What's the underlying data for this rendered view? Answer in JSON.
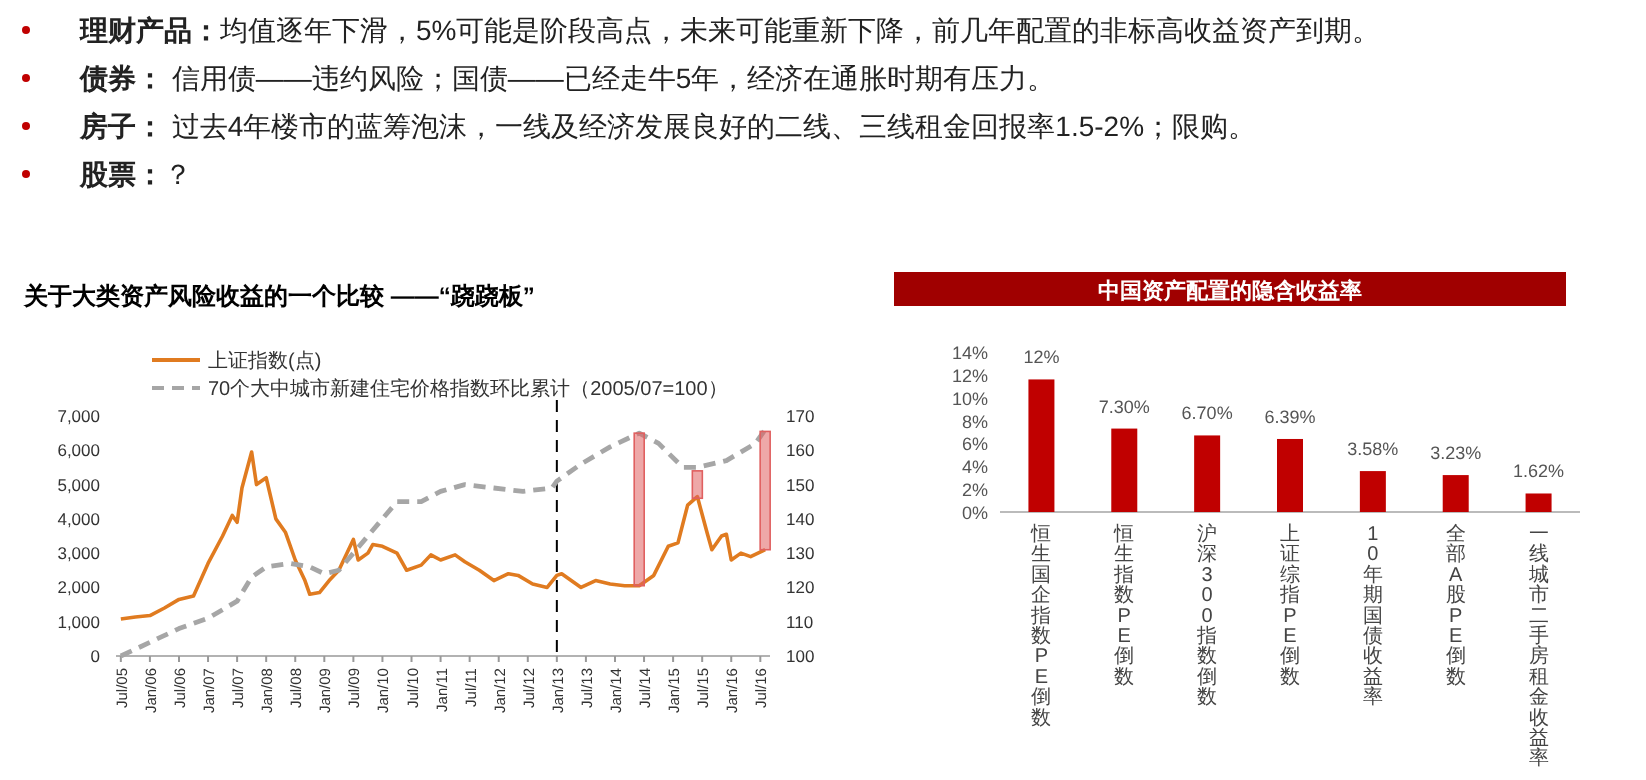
{
  "chart_data": [
    {
      "type": "other",
      "annotations": [
        "理财产品：均值逐年下滑，5%可能是阶段高点，未来可能重新下降，前几年配置的非标高收益资产到期。",
        "债券： 信用债——违约风险；国债——已经走牛5年，经济在通胀时期有压力。",
        "房子： 过去4年楼市的蓝筹泡沫，一线及经济发展良好的二线、三线租金回报率1.5-2%；限购。",
        "股票：？"
      ]
    },
    {
      "type": "line",
      "title": "关于大类资产风险收益的一个比较 ——“跷跷板”",
      "legend": "top left",
      "marker": "none",
      "grid": false,
      "xlim": [
        "2005-06",
        "2016-09"
      ],
      "xticks": [
        {
          "value": "2005-07",
          "label": "Jul/05"
        },
        {
          "value": "2006-01",
          "label": "Jan/06"
        },
        {
          "value": "2006-07",
          "label": "Jul/06"
        },
        {
          "value": "2007-01",
          "label": "Jan/07"
        },
        {
          "value": "2007-07",
          "label": "Jul/07"
        },
        {
          "value": "2008-01",
          "label": "Jan/08"
        },
        {
          "value": "2008-07",
          "label": "Jul/08"
        },
        {
          "value": "2009-01",
          "label": "Jan/09"
        },
        {
          "value": "2009-07",
          "label": "Jul/09"
        },
        {
          "value": "2010-01",
          "label": "Jan/10"
        },
        {
          "value": "2010-07",
          "label": "Jul/10"
        },
        {
          "value": "2011-01",
          "label": "Jan/11"
        },
        {
          "value": "2011-07",
          "label": "Jul/11"
        },
        {
          "value": "2012-01",
          "label": "Jan/12"
        },
        {
          "value": "2012-07",
          "label": "Jul/12"
        },
        {
          "value": "2013-01",
          "label": "Jan/13"
        },
        {
          "value": "2013-07",
          "label": "Jul/13"
        },
        {
          "value": "2014-01",
          "label": "Jan/14"
        },
        {
          "value": "2014-07",
          "label": "Jul/14"
        },
        {
          "value": "2015-01",
          "label": "Jan/15"
        },
        {
          "value": "2015-07",
          "label": "Jul/15"
        },
        {
          "value": "2016-01",
          "label": "Jan/16"
        },
        {
          "value": "2016-07",
          "label": "Jul/16"
        }
      ],
      "ylim": [
        0,
        7000
      ],
      "yticks": [
        0,
        {
          "value": 1000,
          "label": "1,000"
        },
        {
          "value": 2000,
          "label": "2,000"
        },
        {
          "value": 3000,
          "label": "3,000"
        },
        {
          "value": 4000,
          "label": "4,000"
        },
        {
          "value": 5000,
          "label": "5,000"
        },
        {
          "value": 6000,
          "label": "6,000"
        },
        {
          "value": 7000,
          "label": "7,000"
        }
      ],
      "y2lim": [
        100,
        170
      ],
      "y2ticks": [
        100,
        110,
        120,
        130,
        140,
        150,
        160,
        170
      ],
      "ref_lines": [
        {
          "axis": "x",
          "value": "2013-01",
          "label": null,
          "color": "#000000",
          "line_style": "dashed"
        }
      ],
      "series": [
        {
          "name": "上证指数(点)",
          "color": "#e07b20",
          "line_style": "solid",
          "x": [
            "2005-07",
            "2005-10",
            "2006-01",
            "2006-04",
            "2006-07",
            "2006-10",
            "2007-01",
            "2007-04",
            "2007-06",
            "2007-07",
            "2007-08",
            "2007-10",
            "2007-11",
            "2008-01",
            "2008-03",
            "2008-05",
            "2008-07",
            "2008-09",
            "2008-10",
            "2008-12",
            "2009-02",
            "2009-04",
            "2009-07",
            "2009-08",
            "2009-10",
            "2009-11",
            "2010-01",
            "2010-04",
            "2010-06",
            "2010-09",
            "2010-11",
            "2011-01",
            "2011-04",
            "2011-06",
            "2011-09",
            "2011-12",
            "2012-03",
            "2012-05",
            "2012-08",
            "2012-11",
            "2013-01",
            "2013-02",
            "2013-06",
            "2013-09",
            "2013-12",
            "2014-03",
            "2014-06",
            "2014-09",
            "2014-12",
            "2015-02",
            "2015-04",
            "2015-06",
            "2015-08",
            "2015-09",
            "2015-11",
            "2015-12",
            "2016-01",
            "2016-03",
            "2016-05",
            "2016-08"
          ],
          "values": [
            1080,
            1140,
            1180,
            1400,
            1650,
            1750,
            2700,
            3500,
            4100,
            3900,
            4900,
            5950,
            5000,
            5200,
            4000,
            3600,
            2800,
            2200,
            1800,
            1850,
            2200,
            2500,
            3400,
            2800,
            3000,
            3250,
            3200,
            3000,
            2500,
            2650,
            2950,
            2800,
            2950,
            2750,
            2500,
            2200,
            2400,
            2350,
            2100,
            2000,
            2350,
            2400,
            2000,
            2200,
            2100,
            2050,
            2050,
            2350,
            3200,
            3300,
            4400,
            4650,
            3600,
            3100,
            3500,
            3550,
            2800,
            3000,
            2900,
            3100
          ]
        },
        {
          "name": "70个大中城市新建住宅价格指数环比累计（2005/07=100）",
          "color": "#a6a6a6",
          "line_style": "dashed",
          "axis": "y2",
          "x": [
            "2005-07",
            "2006-01",
            "2006-07",
            "2007-01",
            "2007-07",
            "2007-10",
            "2008-01",
            "2008-06",
            "2008-10",
            "2009-01",
            "2009-04",
            "2009-07",
            "2010-01",
            "2010-04",
            "2010-09",
            "2011-01",
            "2011-06",
            "2011-12",
            "2012-06",
            "2012-12",
            "2013-01",
            "2013-06",
            "2013-12",
            "2014-06",
            "2014-10",
            "2015-03",
            "2015-06",
            "2015-12",
            "2016-06",
            "2016-08"
          ],
          "values": [
            100,
            104,
            108,
            111,
            116,
            123,
            126,
            127,
            126,
            124,
            125,
            130,
            140,
            145,
            145,
            148,
            150,
            149,
            148,
            149,
            151,
            156,
            161,
            165,
            162,
            155,
            155,
            157,
            162,
            166
          ]
        },
        {
          "type": "bar",
          "color": "#e06060",
          "axis": "y2",
          "x": [
            "2014-06",
            "2015-06",
            "2016-08"
          ],
          "base": [
            120.5,
            146,
            131
          ],
          "values": [
            44.5,
            8,
            34.5
          ]
        }
      ]
    },
    {
      "type": "bar",
      "title": "中国资产配置的隐含收益率",
      "grid": false,
      "categories": [
        "恒生国企指数PE倒数",
        "恒生指数PE倒数",
        "沪深300指数倒数",
        "上证综指PE倒数",
        "10年期国债收益率",
        "全部A股PE倒数",
        "一线城市二手房租金收益率"
      ],
      "values": [
        11.6,
        7.3,
        6.7,
        6.39,
        3.58,
        3.23,
        1.62
      ],
      "value_labels": [
        "12%",
        "7.30%",
        "6.70%",
        "6.39%",
        "3.58%",
        "3.23%",
        "1.62%"
      ],
      "color": "#c00000",
      "ylim": [
        0,
        14
      ],
      "yticks": [
        {
          "value": 0,
          "label": "0%"
        },
        {
          "value": 2,
          "label": "2%"
        },
        {
          "value": 4,
          "label": "4%"
        },
        {
          "value": 6,
          "label": "6%"
        },
        {
          "value": 8,
          "label": "8%"
        },
        {
          "value": 10,
          "label": "10%"
        },
        {
          "value": 12,
          "label": "12%"
        },
        {
          "value": 14,
          "label": "14%"
        }
      ]
    }
  ]
}
